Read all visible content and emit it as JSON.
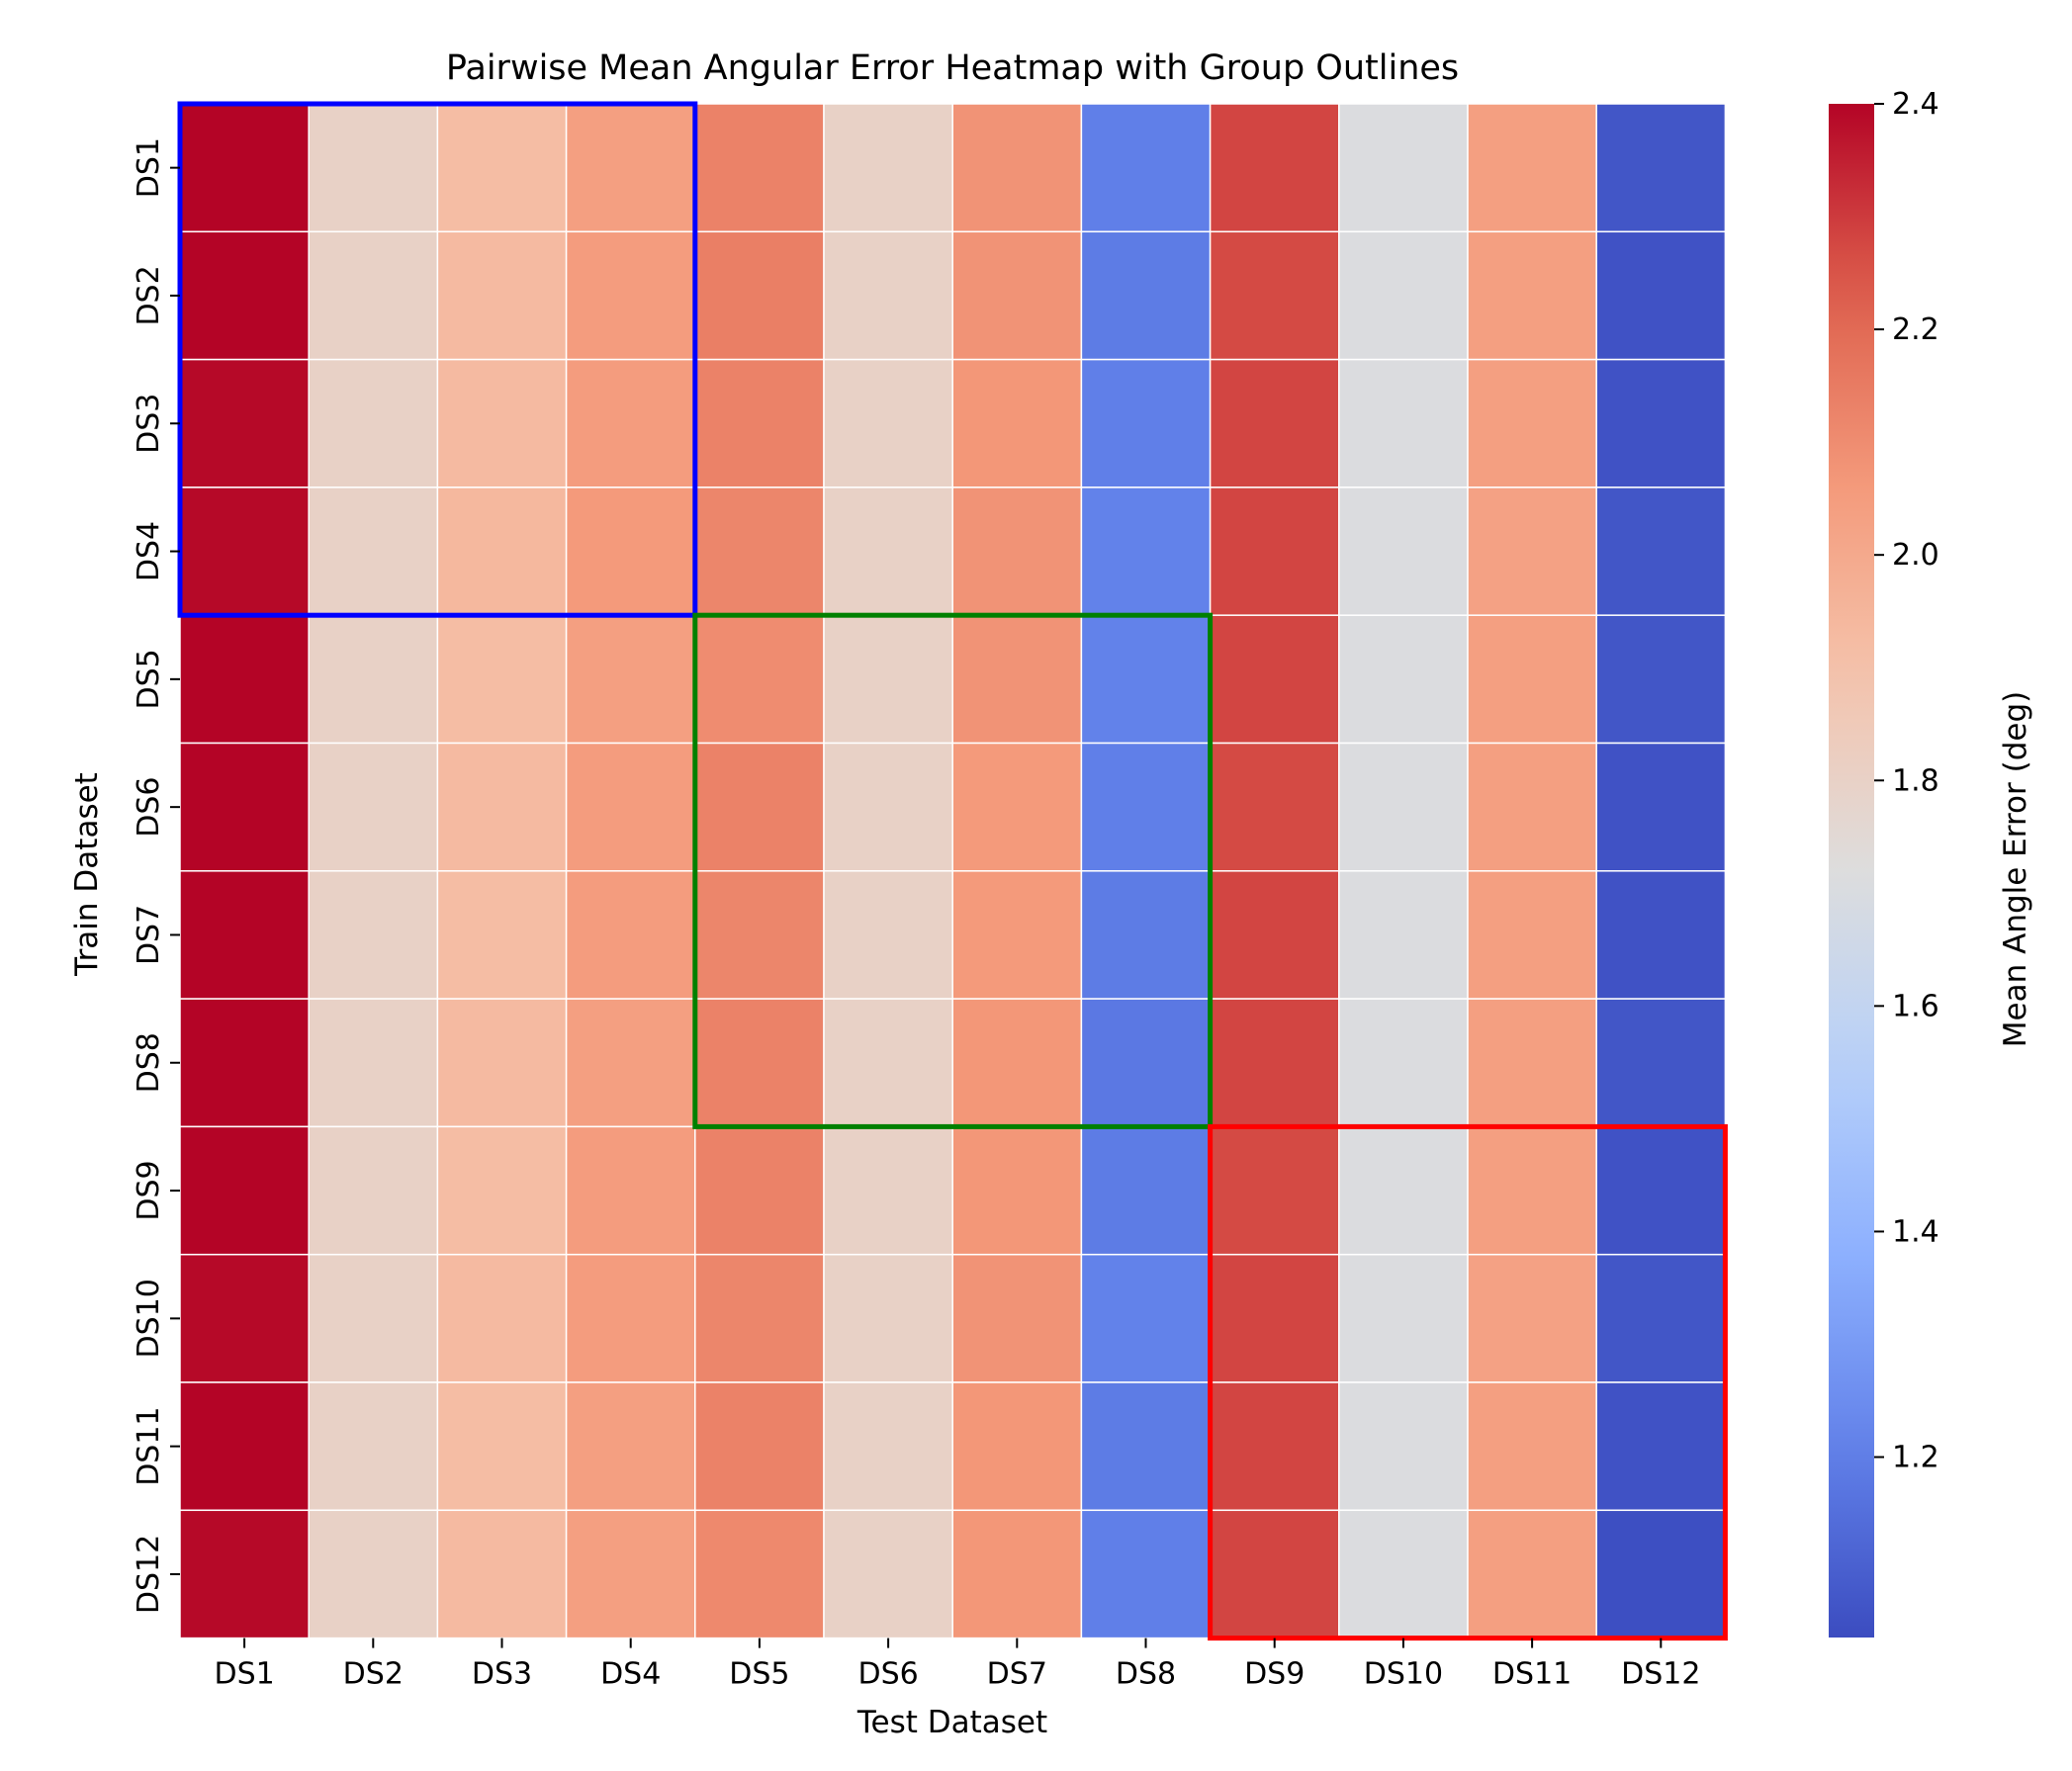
{
  "chart_data": {
    "type": "heatmap",
    "title": "Pairwise Mean Angular Error Heatmap with Group Outlines",
    "xlabel": "Test Dataset",
    "ylabel": "Train Dataset",
    "x_categories": [
      "DS1",
      "DS2",
      "DS3",
      "DS4",
      "DS5",
      "DS6",
      "DS7",
      "DS8",
      "DS9",
      "DS10",
      "DS11",
      "DS12"
    ],
    "y_categories": [
      "DS1",
      "DS2",
      "DS3",
      "DS4",
      "DS5",
      "DS6",
      "DS7",
      "DS8",
      "DS9",
      "DS10",
      "DS11",
      "DS12"
    ],
    "values": [
      [
        2.4,
        1.8,
        1.92,
        2.04,
        2.13,
        1.8,
        2.08,
        1.2,
        2.28,
        1.71,
        2.04,
        1.07
      ],
      [
        2.4,
        1.8,
        1.93,
        2.05,
        2.14,
        1.8,
        2.08,
        1.19,
        2.27,
        1.71,
        2.04,
        1.06
      ],
      [
        2.39,
        1.8,
        1.93,
        2.05,
        2.13,
        1.8,
        2.07,
        1.2,
        2.28,
        1.71,
        2.04,
        1.06
      ],
      [
        2.39,
        1.8,
        1.94,
        2.06,
        2.12,
        1.8,
        2.08,
        1.21,
        2.28,
        1.71,
        2.03,
        1.07
      ],
      [
        2.4,
        1.8,
        1.92,
        2.04,
        2.1,
        1.8,
        2.08,
        1.21,
        2.28,
        1.71,
        2.04,
        1.07
      ],
      [
        2.4,
        1.8,
        1.93,
        2.05,
        2.13,
        1.8,
        2.06,
        1.2,
        2.27,
        1.71,
        2.04,
        1.06
      ],
      [
        2.4,
        1.8,
        1.92,
        2.05,
        2.12,
        1.8,
        2.06,
        1.19,
        2.28,
        1.71,
        2.04,
        1.06
      ],
      [
        2.4,
        1.8,
        1.93,
        2.04,
        2.13,
        1.8,
        2.07,
        1.18,
        2.28,
        1.71,
        2.04,
        1.07
      ],
      [
        2.4,
        1.8,
        1.92,
        2.05,
        2.13,
        1.8,
        2.07,
        1.19,
        2.27,
        1.71,
        2.04,
        1.06
      ],
      [
        2.39,
        1.8,
        1.93,
        2.05,
        2.12,
        1.8,
        2.08,
        1.21,
        2.28,
        1.71,
        2.03,
        1.07
      ],
      [
        2.4,
        1.8,
        1.92,
        2.04,
        2.13,
        1.8,
        2.07,
        1.19,
        2.28,
        1.71,
        2.04,
        1.06
      ],
      [
        2.39,
        1.8,
        1.93,
        2.04,
        2.11,
        1.8,
        2.07,
        1.2,
        2.28,
        1.71,
        2.04,
        1.05
      ]
    ],
    "colormap": "coolwarm",
    "colorbar": {
      "label": "Mean Angle Error (deg)",
      "min": 1.04,
      "max": 2.4,
      "ticks": [
        1.2,
        1.4,
        1.6,
        1.8,
        2.0,
        2.2,
        2.4
      ],
      "tick_labels": [
        "1.2",
        "1.4",
        "1.6",
        "1.8",
        "2.0",
        "2.2",
        "2.4"
      ]
    },
    "group_outlines": [
      {
        "rows": [
          "DS1",
          "DS4"
        ],
        "cols": [
          "DS1",
          "DS4"
        ],
        "color": "#0000ff"
      },
      {
        "rows": [
          "DS5",
          "DS8"
        ],
        "cols": [
          "DS5",
          "DS8"
        ],
        "color": "#008000"
      },
      {
        "rows": [
          "DS9",
          "DS12"
        ],
        "cols": [
          "DS9",
          "DS12"
        ],
        "color": "#ff0000"
      }
    ],
    "grid": false,
    "legend": "colorbar-right"
  }
}
